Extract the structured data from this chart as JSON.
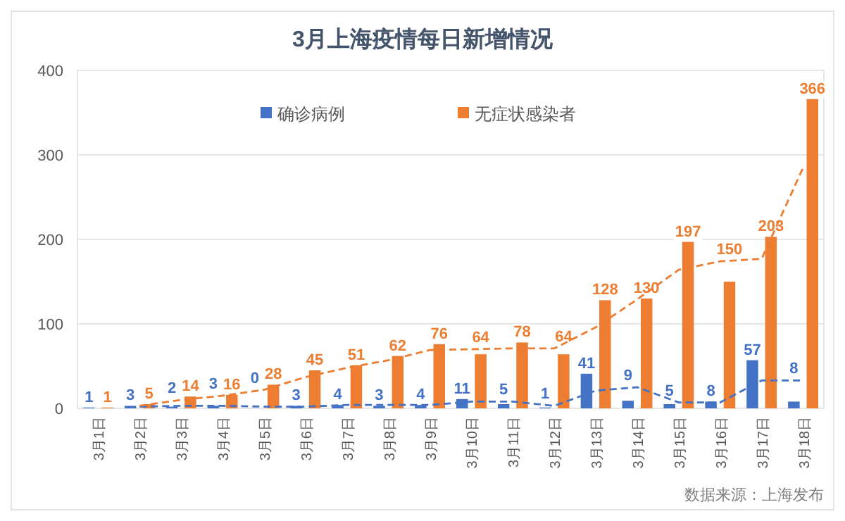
{
  "chart_data": {
    "type": "bar",
    "title": "3月上海疫情每日新增情况",
    "categories": [
      "3月1日",
      "3月2日",
      "3月3日",
      "3月4日",
      "3月5日",
      "3月6日",
      "3月7日",
      "3月8日",
      "3月9日",
      "3月10日",
      "3月11日",
      "3月12日",
      "3月13日",
      "3月14日",
      "3月15日",
      "3月16日",
      "3月17日",
      "3月18日"
    ],
    "series": [
      {
        "name": "确诊病例",
        "color": "#4472c4",
        "data_labels": true,
        "values": [
          1,
          3,
          2,
          3,
          0,
          3,
          4,
          3,
          4,
          11,
          5,
          1,
          41,
          9,
          5,
          8,
          57,
          8
        ]
      },
      {
        "name": "无症状感染者",
        "color": "#ed7d31",
        "data_labels": true,
        "values": [
          1,
          5,
          14,
          16,
          28,
          45,
          51,
          62,
          76,
          64,
          78,
          64,
          128,
          130,
          197,
          150,
          203,
          366
        ]
      },
      {
        "type": "line",
        "color": "#4472c4",
        "line_style": "dashed",
        "marker": "none",
        "values": [
          null,
          2,
          3,
          3,
          2,
          2,
          4,
          4,
          4,
          8,
          8,
          3,
          21,
          25,
          7,
          7,
          33,
          33
        ]
      },
      {
        "type": "line",
        "color": "#ed7d31",
        "line_style": "dashed",
        "marker": "none",
        "values": [
          null,
          3,
          10,
          15,
          22,
          37,
          48,
          57,
          69,
          70,
          71,
          71,
          96,
          129,
          164,
          174,
          177,
          285
        ]
      }
    ],
    "ylim": [
      0,
      400
    ],
    "yticks": [
      0,
      100,
      200,
      300,
      400
    ],
    "grid": "y",
    "legend": "top",
    "annotations": [
      "数据来源：上海发布"
    ]
  }
}
